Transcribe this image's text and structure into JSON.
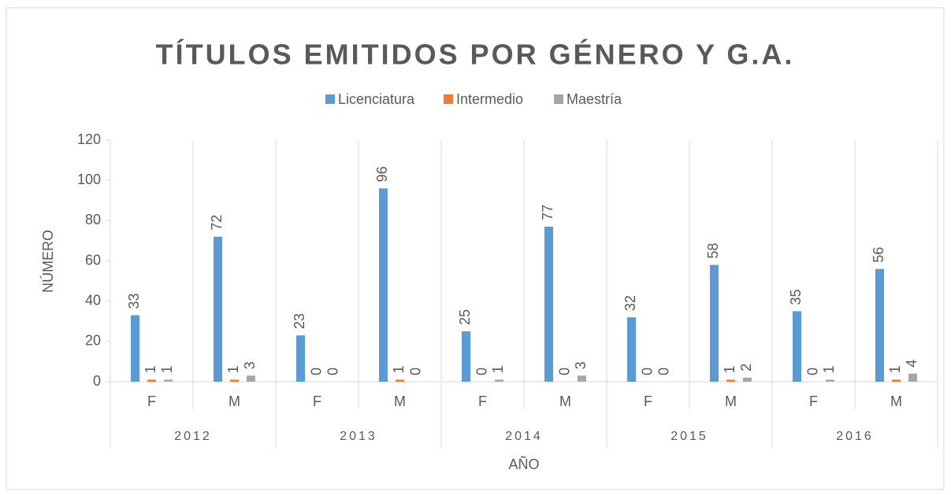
{
  "chart_data": {
    "type": "bar",
    "title": "TÍTULOS EMITIDOS POR GÉNERO Y G.A.",
    "y_label": "NÚMERO",
    "x_label": "AÑO",
    "categories": [
      "F",
      "M",
      "F",
      "M",
      "F",
      "M",
      "F",
      "M",
      "F",
      "M"
    ],
    "groups": [
      "2012",
      "2013",
      "2014",
      "2015",
      "2016"
    ],
    "series": [
      {
        "name": "Licenciatura",
        "color": "#5b9bd5",
        "values": [
          33,
          72,
          23,
          96,
          25,
          77,
          32,
          58,
          35,
          56
        ]
      },
      {
        "name": "Intermedio",
        "color": "#ed7d31",
        "values": [
          1,
          1,
          0,
          1,
          0,
          0,
          0,
          1,
          0,
          1
        ]
      },
      {
        "name": "Maestría",
        "color": "#a5a5a5",
        "values": [
          1,
          3,
          0,
          0,
          1,
          3,
          0,
          2,
          1,
          4
        ]
      }
    ],
    "ylim": [
      0,
      120
    ],
    "yticks": [
      0,
      20,
      40,
      60,
      80,
      100,
      120
    ],
    "grid": false,
    "legend": "top"
  }
}
